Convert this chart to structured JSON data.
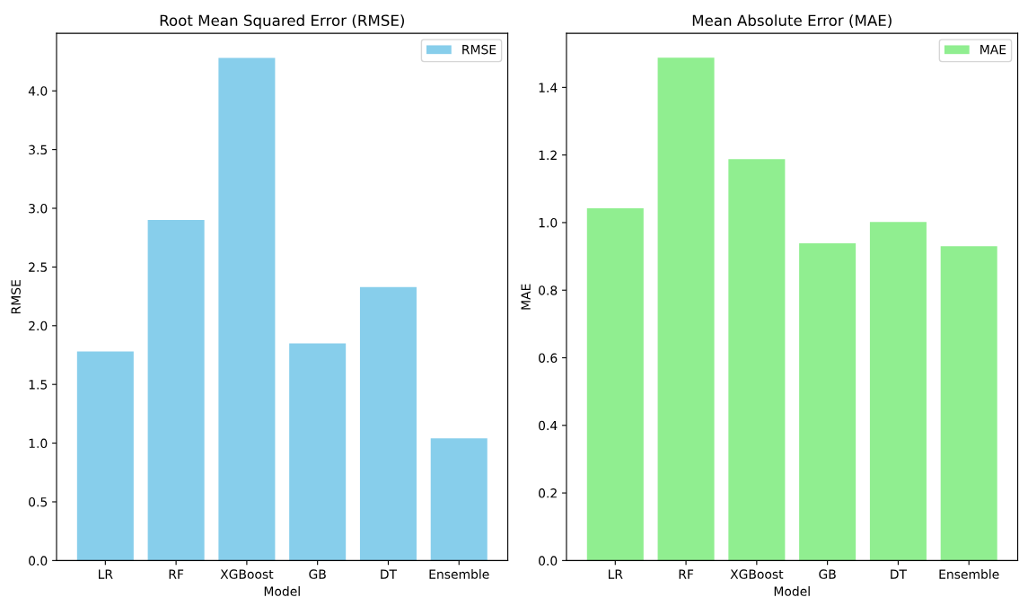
{
  "chart_data": [
    {
      "type": "bar",
      "title": "Root Mean Squared Error (RMSE)",
      "xlabel": "Model",
      "ylabel": "RMSE",
      "categories": [
        "LR",
        "RF",
        "XGBoost",
        "GB",
        "DT",
        "Ensemble"
      ],
      "series": [
        {
          "name": "RMSE",
          "color": "#87ceeb",
          "values": [
            1.78,
            2.9,
            4.28,
            1.85,
            2.33,
            1.04
          ]
        }
      ],
      "ylim": [
        0,
        4.49
      ],
      "yticks": [
        {
          "value": 0,
          "label": "0.0"
        },
        0.5,
        {
          "value": 1,
          "label": "1.0"
        },
        1.5,
        {
          "value": 2,
          "label": "2.0"
        },
        2.5,
        {
          "value": 3,
          "label": "3.0"
        },
        3.5,
        {
          "value": 4,
          "label": "4.0"
        }
      ],
      "legend": "top right"
    },
    {
      "type": "bar",
      "title": "Mean Absolute Error (MAE)",
      "xlabel": "Model",
      "ylabel": "MAE",
      "categories": [
        "LR",
        "RF",
        "XGBoost",
        "GB",
        "DT",
        "Ensemble"
      ],
      "series": [
        {
          "name": "MAE",
          "color": "#90ee90",
          "values": [
            1.042,
            1.488,
            1.188,
            0.939,
            1.002,
            0.93
          ]
        }
      ],
      "ylim": [
        0,
        1.56
      ],
      "yticks": [
        {
          "value": 0,
          "label": "0.0"
        },
        0.2,
        0.4,
        0.6,
        0.8,
        {
          "value": 1,
          "label": "1.0"
        },
        1.2,
        1.4
      ],
      "legend": "top right"
    }
  ]
}
